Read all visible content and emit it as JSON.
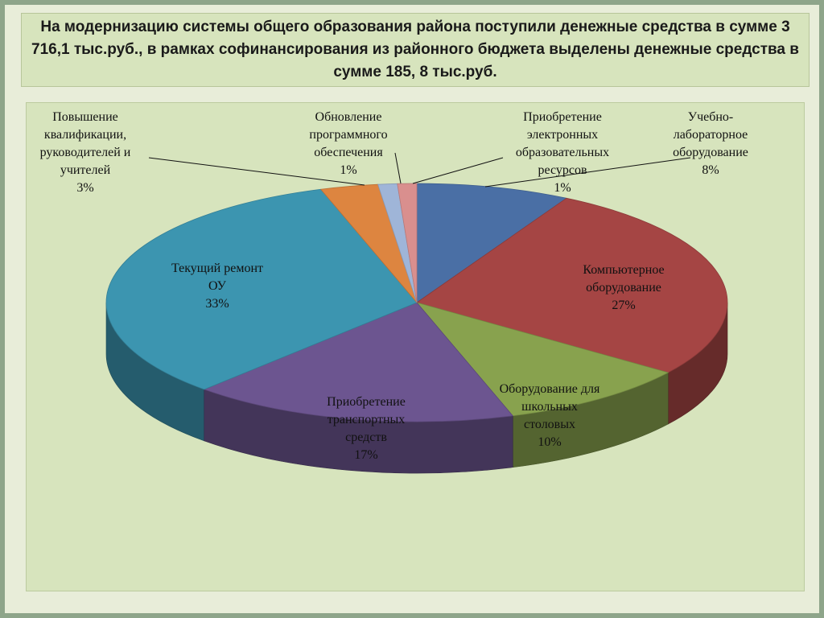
{
  "title": "На модернизацию системы общего образования района поступили денежные средства в сумме 3 716,1 тыс.руб., в рамках софинансирования из районного бюджета выделены денежные средства в сумме 185, 8 тыс.руб.",
  "chart_data": {
    "type": "pie",
    "unit": "%",
    "slices": [
      {
        "label": "Учебно-лабораторное оборудование",
        "lines": [
          "Учебно-",
          "лабораторное",
          "оборудование",
          "8%"
        ],
        "value": 8,
        "color": "#4a6fa5"
      },
      {
        "label": "Компьютерное оборудование",
        "lines": [
          "Компьютерное",
          "оборудование",
          "27%"
        ],
        "value": 27,
        "color": "#a54544"
      },
      {
        "label": "Оборудование для школьных столовых",
        "lines": [
          "Оборудование для",
          "школьных",
          "столовых",
          "10%"
        ],
        "value": 10,
        "color": "#88a24e"
      },
      {
        "label": "Приобретение транспортных средств",
        "lines": [
          "Приобретение",
          "транспортных",
          "средств",
          "17%"
        ],
        "value": 17,
        "color": "#6c5590"
      },
      {
        "label": "Текущий ремонт ОУ",
        "lines": [
          "Текущий ремонт",
          "ОУ",
          "33%"
        ],
        "value": 33,
        "color": "#3c95b0"
      },
      {
        "label": "Повышение квалификации, руководителей и учителей",
        "lines": [
          "Повышение",
          "квалификации,",
          "руководителей и",
          "учителей",
          "3%"
        ],
        "value": 3,
        "color": "#dd8540"
      },
      {
        "label": "Обновление программного обеспечения",
        "lines": [
          "Обновление",
          "программного",
          "обеспечения",
          "1%"
        ],
        "value": 1,
        "color": "#9fb5d8"
      },
      {
        "label": "Приобретение электронных образовательных ресурсов",
        "lines": [
          "Приобретение",
          "электронных",
          "образовательных",
          "ресурсов",
          "1%"
        ],
        "value": 1,
        "color": "#d98f8e"
      }
    ]
  }
}
